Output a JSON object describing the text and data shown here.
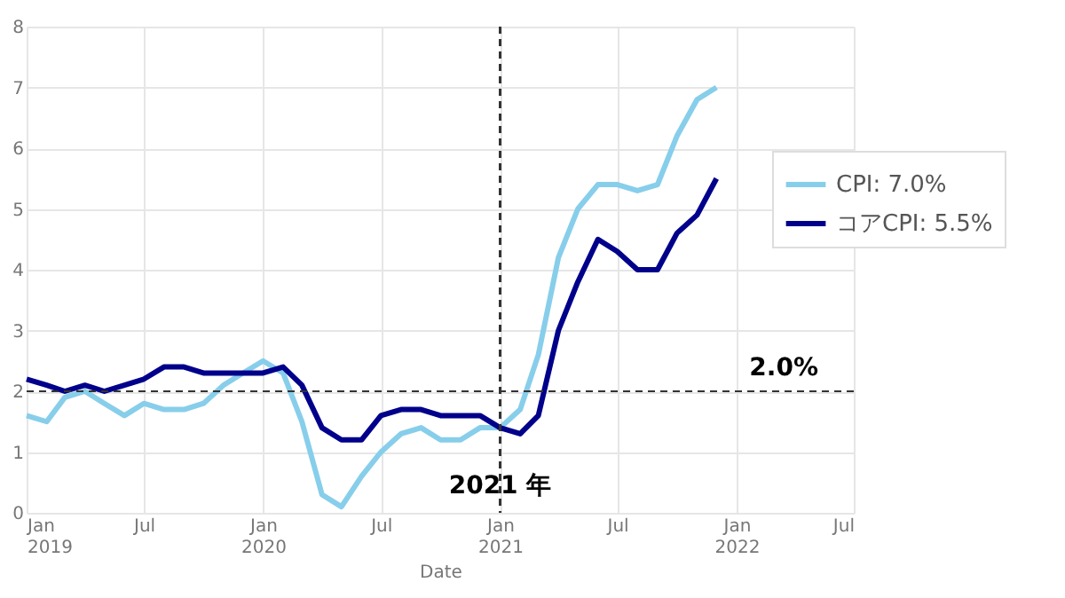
{
  "chart_data": {
    "type": "line",
    "xlabel": "Date",
    "x": [
      "2019-01",
      "2019-02",
      "2019-03",
      "2019-04",
      "2019-05",
      "2019-06",
      "2019-07",
      "2019-08",
      "2019-09",
      "2019-10",
      "2019-11",
      "2019-12",
      "2020-01",
      "2020-02",
      "2020-03",
      "2020-04",
      "2020-05",
      "2020-06",
      "2020-07",
      "2020-08",
      "2020-09",
      "2020-10",
      "2020-11",
      "2020-12",
      "2021-01",
      "2021-02",
      "2021-03",
      "2021-04",
      "2021-05",
      "2021-06",
      "2021-07",
      "2021-08",
      "2021-09",
      "2021-10",
      "2021-11",
      "2021-12"
    ],
    "series": [
      {
        "name": "CPI: 7.0%",
        "color": "#87ceeb",
        "values": [
          1.6,
          1.5,
          1.9,
          2.0,
          1.8,
          1.6,
          1.8,
          1.7,
          1.7,
          1.8,
          2.1,
          2.3,
          2.5,
          2.3,
          1.5,
          0.3,
          0.1,
          0.6,
          1.0,
          1.3,
          1.4,
          1.2,
          1.2,
          1.4,
          1.4,
          1.7,
          2.6,
          4.2,
          5.0,
          5.4,
          5.4,
          5.3,
          5.4,
          6.2,
          6.8,
          7.0
        ]
      },
      {
        "name": "コアCPI: 5.5%",
        "color": "#00008b",
        "values": [
          2.2,
          2.1,
          2.0,
          2.1,
          2.0,
          2.1,
          2.2,
          2.4,
          2.4,
          2.3,
          2.3,
          2.3,
          2.3,
          2.4,
          2.1,
          1.4,
          1.2,
          1.2,
          1.6,
          1.7,
          1.7,
          1.6,
          1.6,
          1.6,
          1.4,
          1.3,
          1.6,
          3.0,
          3.8,
          4.5,
          4.3,
          4.0,
          4.0,
          4.6,
          4.9,
          5.5
        ]
      }
    ],
    "xlim": [
      "2019-01",
      "2022-07"
    ],
    "xticks": [
      {
        "value": "2019-01",
        "label": "Jan 2019"
      },
      {
        "value": "2019-07",
        "label": "Jul"
      },
      {
        "value": "2020-01",
        "label": "Jan 2020"
      },
      {
        "value": "2020-07",
        "label": "Jul"
      },
      {
        "value": "2021-01",
        "label": "Jan 2021"
      },
      {
        "value": "2021-07",
        "label": "Jul"
      },
      {
        "value": "2022-01",
        "label": "Jan 2022"
      },
      {
        "value": "2022-07",
        "label": "Jul"
      }
    ],
    "ylim": [
      0,
      8
    ],
    "yticks": [
      0,
      1,
      2,
      3,
      4,
      5,
      6,
      7,
      8
    ],
    "ref_lines": [
      {
        "axis": "y",
        "value": 2.0,
        "label": "2.0%",
        "line_style": "dashed",
        "color": "#333333"
      },
      {
        "axis": "x",
        "value": "2021-01",
        "label": "2021 年",
        "line_style": "dashed",
        "color": "#333333"
      }
    ],
    "grid": true,
    "legend": "right",
    "line_style": "solid",
    "marker": "none"
  }
}
